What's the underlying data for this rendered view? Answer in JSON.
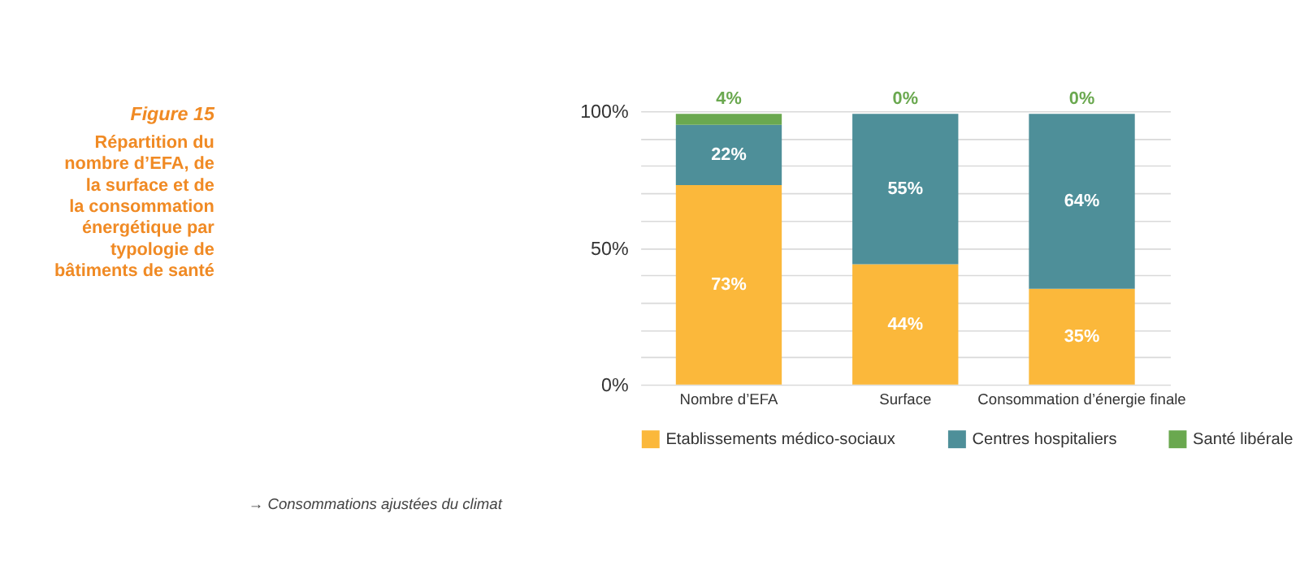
{
  "chart_data": {
    "type": "bar",
    "stacked": true,
    "title": "Figure 15",
    "subtitle": "Répartition du nombre d’EFA, de la surface et de la consommation énergétique par typologie de bâtiments de santé",
    "categories": [
      "Nombre d’EFA",
      "Surface",
      "Consommation d’énergie finale"
    ],
    "series": [
      {
        "name": "Etablissements médico-sociaux",
        "color": "#fbb83b",
        "values": [
          73,
          44,
          35
        ],
        "value_labels": [
          "73%",
          "44%",
          "35%"
        ]
      },
      {
        "name": "Centres hospitaliers",
        "color": "#4e8f99",
        "values": [
          22,
          55,
          64
        ],
        "value_labels": [
          "22%",
          "55%",
          "64%"
        ]
      },
      {
        "name": "Santé libérale",
        "color": "#6aa84f",
        "values": [
          4,
          0,
          0
        ],
        "value_labels": [
          "4%",
          "0%",
          "0%"
        ]
      }
    ],
    "ylim": [
      0,
      100
    ],
    "yticks": [
      {
        "value": 0,
        "label": "0%"
      },
      {
        "value": 10,
        "label": null
      },
      {
        "value": 20,
        "label": null
      },
      {
        "value": 30,
        "label": null
      },
      {
        "value": 40,
        "label": null
      },
      {
        "value": 50,
        "label": "50%"
      },
      {
        "value": 60,
        "label": null
      },
      {
        "value": 70,
        "label": null
      },
      {
        "value": 80,
        "label": null
      },
      {
        "value": 90,
        "label": null
      },
      {
        "value": 100,
        "label": "100%"
      }
    ],
    "grid": "y",
    "legend": "bottom",
    "annotations": [
      "→ Consommations ajustées du climat"
    ]
  }
}
